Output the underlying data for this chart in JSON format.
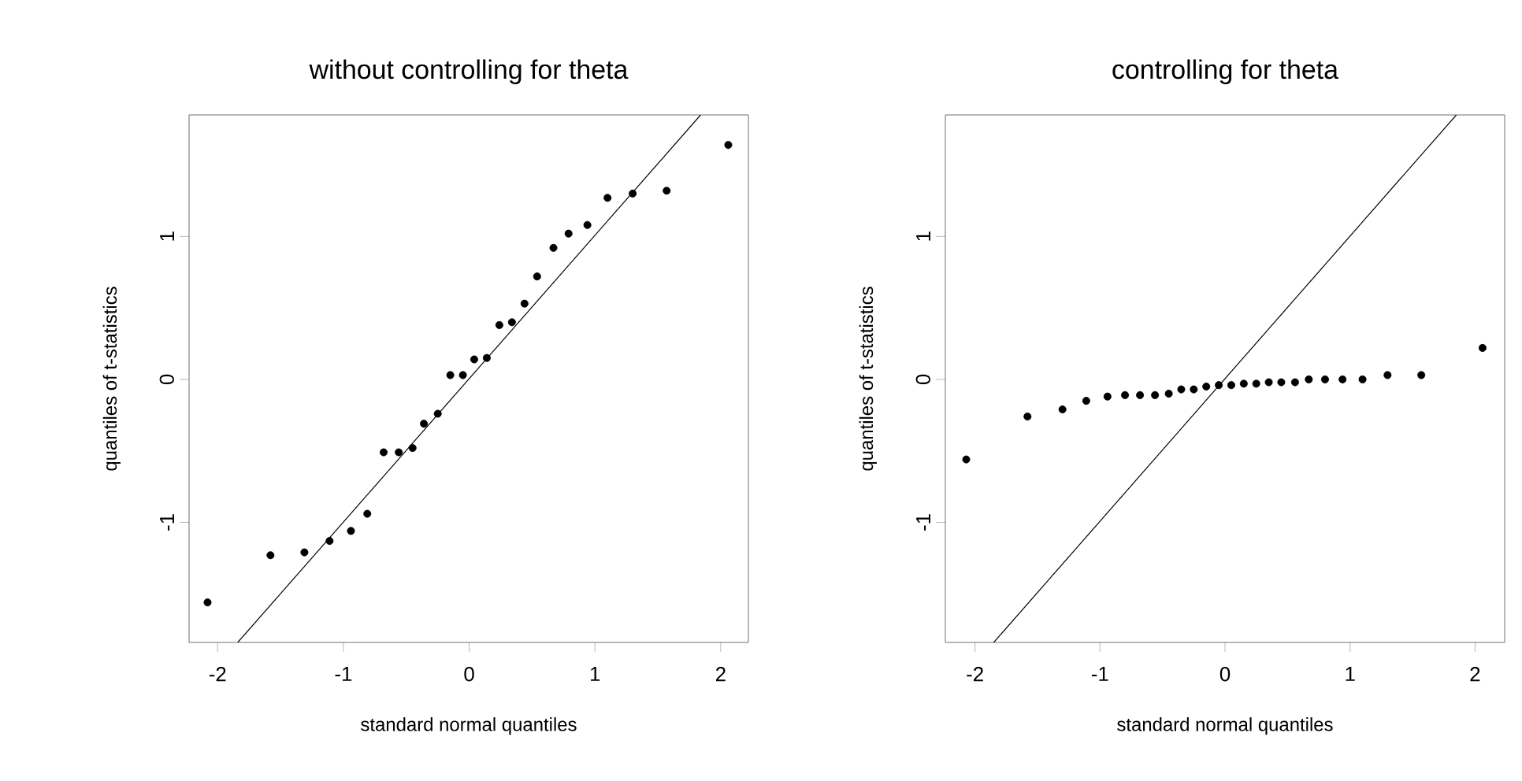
{
  "chart_data": [
    {
      "type": "scatter",
      "title": "without controlling for theta",
      "xlabel": "standard normal quantiles",
      "ylabel": "quantiles of t-statistics",
      "xlim": [
        -2.227,
        2.22
      ],
      "ylim": [
        -1.84,
        1.85
      ],
      "xticks": [
        -2,
        -1,
        0,
        1,
        2
      ],
      "yticks": [
        -1,
        0,
        1
      ],
      "series": [
        {
          "color": "#000000",
          "marker": "circle",
          "x": [
            -2.08,
            -1.58,
            -1.31,
            -1.11,
            -0.94,
            -0.81,
            -0.68,
            -0.56,
            -0.45,
            -0.36,
            -0.25,
            -0.15,
            -0.05,
            0.04,
            0.14,
            0.24,
            0.34,
            0.44,
            0.54,
            0.67,
            0.79,
            0.94,
            1.1,
            1.3,
            1.57,
            2.06
          ],
          "values": [
            -1.56,
            -1.23,
            -1.21,
            -1.13,
            -1.06,
            -0.94,
            -0.51,
            -0.51,
            -0.48,
            -0.31,
            -0.24,
            0.03,
            0.03,
            0.14,
            0.15,
            0.38,
            0.4,
            0.53,
            0.72,
            0.92,
            1.02,
            1.08,
            1.27,
            1.3,
            1.32,
            1.64
          ]
        },
        {
          "type": "line",
          "marker": "none",
          "color": "#000000",
          "x": [
            -1.84,
            1.84
          ],
          "values": [
            -1.84,
            1.85
          ]
        }
      ]
    },
    {
      "type": "scatter",
      "title": "controlling for theta",
      "xlabel": "standard normal quantiles",
      "ylabel": "quantiles of t-statistics",
      "xlim": [
        -2.237,
        2.237
      ],
      "ylim": [
        -1.84,
        1.85
      ],
      "xticks": [
        -2,
        -1,
        0,
        1,
        2
      ],
      "yticks": [
        -1,
        0,
        1
      ],
      "series": [
        {
          "color": "#000000",
          "marker": "circle",
          "x": [
            -2.07,
            -1.58,
            -1.3,
            -1.11,
            -0.94,
            -0.8,
            -0.68,
            -0.56,
            -0.45,
            -0.35,
            -0.25,
            -0.15,
            -0.05,
            0.05,
            0.15,
            0.25,
            0.35,
            0.45,
            0.56,
            0.67,
            0.8,
            0.94,
            1.1,
            1.3,
            1.57,
            2.06
          ],
          "values": [
            -0.56,
            -0.26,
            -0.21,
            -0.15,
            -0.12,
            -0.11,
            -0.11,
            -0.11,
            -0.1,
            -0.07,
            -0.07,
            -0.05,
            -0.04,
            -0.04,
            -0.03,
            -0.03,
            -0.02,
            -0.02,
            -0.02,
            0.0,
            0.0,
            0.0,
            0.0,
            0.03,
            0.03,
            0.22
          ]
        },
        {
          "type": "line",
          "marker": "none",
          "color": "#000000",
          "x": [
            -1.85,
            1.85
          ],
          "values": [
            -1.84,
            1.85
          ]
        }
      ]
    }
  ]
}
